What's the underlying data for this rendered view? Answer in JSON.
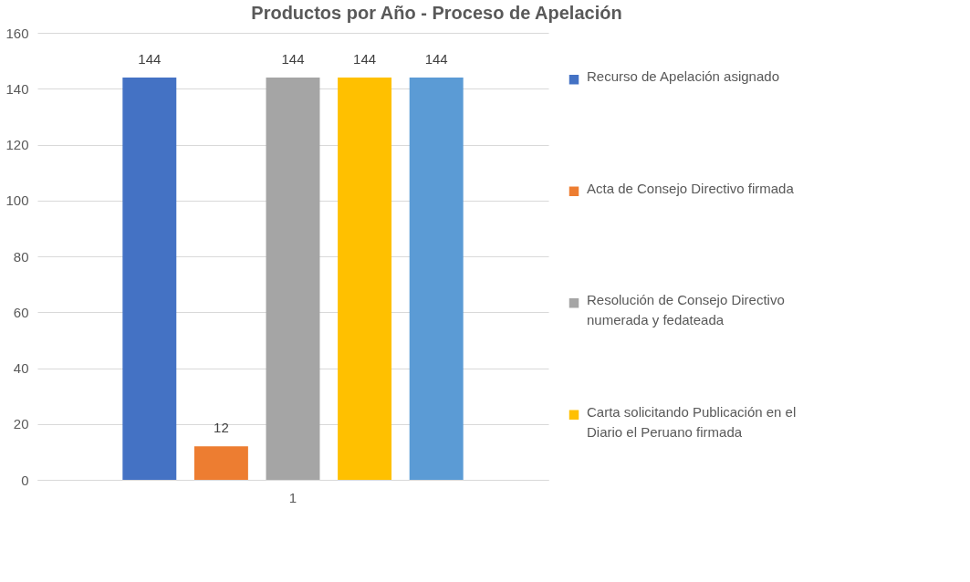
{
  "chart_data": {
    "type": "bar",
    "title": "Productos por Año - Proceso de Apelación",
    "categories": [
      "1"
    ],
    "series": [
      {
        "name": "Recurso de Apelación asignado",
        "color": "#4472c4",
        "values": [
          144
        ]
      },
      {
        "name": "Acta de Consejo Directivo firmada",
        "color": "#ed7d31",
        "values": [
          12
        ]
      },
      {
        "name": "Resolución de Consejo Directivo numerada y fedateada",
        "color": "#a5a5a5",
        "values": [
          144
        ]
      },
      {
        "name": "Carta solicitando Publicación en el Diario el Peruano firmada",
        "color": "#ffc000",
        "values": [
          144
        ]
      },
      {
        "color": "#5b9bd5",
        "values": [
          144
        ]
      }
    ],
    "ylim": [
      0,
      160
    ],
    "yticks": [
      0,
      20,
      40,
      60,
      80,
      100,
      120,
      140,
      160
    ],
    "grid": "y",
    "data_labels": true,
    "legend": "right"
  }
}
